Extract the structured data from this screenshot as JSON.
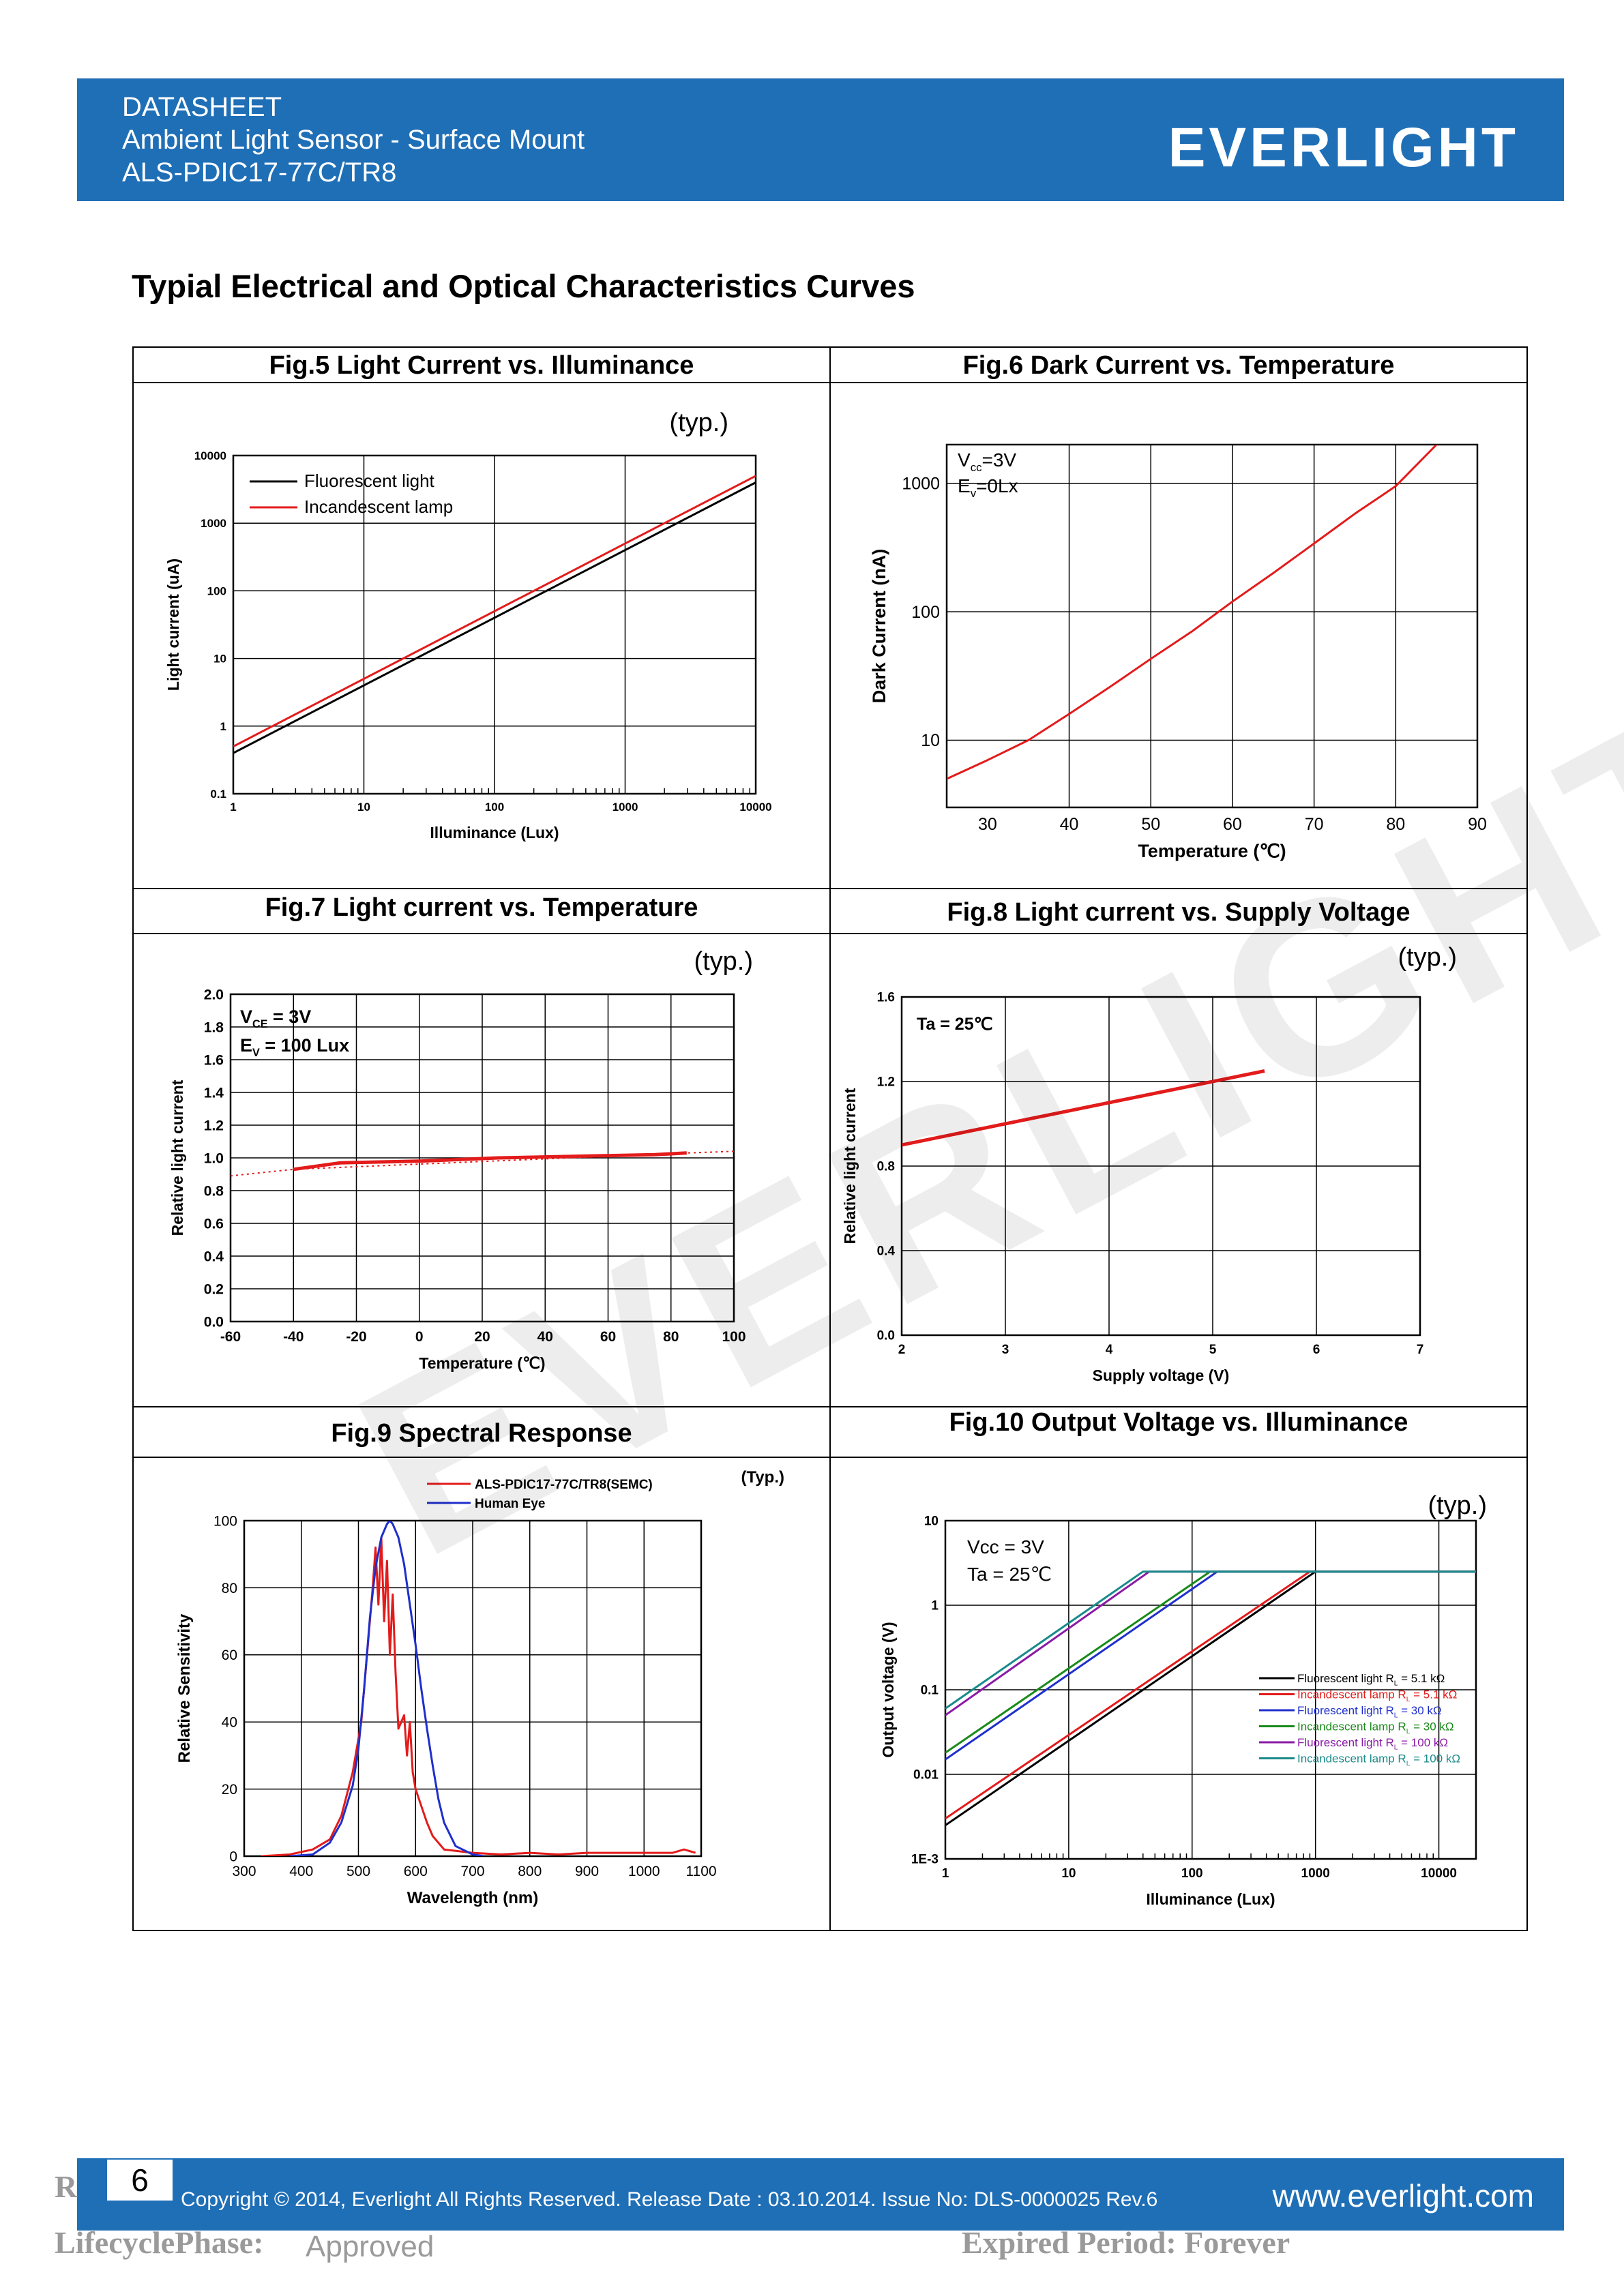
{
  "header": {
    "line1": "DATASHEET",
    "line2": "Ambient Light Sensor - Surface Mount",
    "line3": "ALS-PDIC17-77C/TR8",
    "logo": "EVERLIGHT"
  },
  "page_title": "Typial Electrical and Optical Characteristics Curves",
  "watermark": "EVERLIGHT",
  "colors": {
    "header_blue": "#1f6fb7",
    "curve_red": "#e31b1b",
    "black": "#000000"
  },
  "figs": {
    "fig5": {
      "title": "Fig.5    Light Current vs. Illuminance",
      "typ": "(typ.)"
    },
    "fig6": {
      "title": "Fig.6    Dark Current vs. Temperature"
    },
    "fig7": {
      "title": "Fig.7    Light current vs. Temperature",
      "typ": "(typ.)"
    },
    "fig8": {
      "title": "Fig.8    Light current vs. Supply Voltage",
      "typ": "(typ.)"
    },
    "fig9": {
      "title": "Fig.9    Spectral Response",
      "typ": "(Typ.)"
    },
    "fig10": {
      "title": "Fig.10    Output Voltage vs. Illuminance",
      "typ": "(typ.)"
    }
  },
  "chart_data": [
    {
      "id": "fig5",
      "type": "line",
      "xlabel": "Illuminance (Lux)",
      "ylabel": "Light current (uA)",
      "xscale": "log",
      "yscale": "log",
      "xlim": [
        1,
        10000
      ],
      "ylim": [
        0.1,
        10000
      ],
      "xticks": [
        "1",
        "10",
        "100",
        "1000",
        "10000"
      ],
      "yticks": [
        "0.1",
        "1",
        "10",
        "100",
        "1000",
        "10000"
      ],
      "series": [
        {
          "name": "Fluorescent light",
          "color": "#000000",
          "x": [
            1,
            10000
          ],
          "y": [
            0.4,
            4000
          ]
        },
        {
          "name": "Incandescent lamp",
          "color": "#e31b1b",
          "x": [
            1,
            10000
          ],
          "y": [
            0.5,
            5000
          ]
        }
      ]
    },
    {
      "id": "fig6",
      "type": "line",
      "xlabel": "Temperature (℃)",
      "ylabel": "Dark Current (nA)",
      "yscale": "log",
      "xlim": [
        25,
        90
      ],
      "ylim": [
        3,
        2000
      ],
      "xticks": [
        "30",
        "40",
        "50",
        "60",
        "70",
        "80",
        "90"
      ],
      "yticks": [
        "10",
        "100",
        "1000"
      ],
      "annotation": [
        "V",
        "cc",
        "=3V",
        "E",
        "v",
        "=0Lx"
      ],
      "series": [
        {
          "name": "",
          "color": "#e31b1b",
          "x": [
            25,
            30,
            35,
            40,
            45,
            50,
            55,
            60,
            65,
            70,
            75,
            80,
            85
          ],
          "y": [
            5,
            7,
            10,
            16,
            26,
            43,
            70,
            120,
            200,
            340,
            580,
            950,
            2000
          ]
        }
      ]
    },
    {
      "id": "fig7",
      "type": "line",
      "xlabel": "Temperature (",
      "xlabel_unit": "℃",
      "xlabel_end": ")",
      "ylabel": "Relative light current",
      "xlim": [
        -60,
        100
      ],
      "ylim": [
        0,
        2.0
      ],
      "xticks": [
        "-60",
        "-40",
        "-20",
        "0",
        "20",
        "40",
        "60",
        "80",
        "100"
      ],
      "yticks": [
        "0.0",
        "0.2",
        "0.4",
        "0.6",
        "0.8",
        "1.0",
        "1.2",
        "1.4",
        "1.6",
        "1.8",
        "2.0"
      ],
      "annotation": [
        "V",
        "CE",
        " = 3V",
        "E",
        "V",
        " = 100 Lux"
      ],
      "series": [
        {
          "name": "",
          "color": "#e31b1b",
          "x": [
            -40,
            -25,
            0,
            25,
            50,
            75,
            85
          ],
          "y": [
            0.93,
            0.97,
            0.98,
            1.0,
            1.01,
            1.02,
            1.03
          ]
        },
        {
          "name": "",
          "color": "#e31b1b",
          "style": "dotted",
          "x": [
            -60,
            -40,
            85,
            100
          ],
          "y": [
            0.89,
            0.93,
            1.03,
            1.04
          ]
        }
      ]
    },
    {
      "id": "fig8",
      "type": "line",
      "xlabel": "Supply voltage (V)",
      "ylabel": "Relative light current",
      "xlim": [
        2,
        7
      ],
      "ylim": [
        0,
        1.6
      ],
      "xticks": [
        "2",
        "3",
        "4",
        "5",
        "6",
        "7"
      ],
      "yticks": [
        "0.0",
        "0.4",
        "0.8",
        "1.2",
        "1.6"
      ],
      "annotation": "Ta = 25℃",
      "series": [
        {
          "name": "",
          "color": "#e31b1b",
          "x": [
            2,
            5.5
          ],
          "y": [
            0.9,
            1.25
          ]
        }
      ]
    },
    {
      "id": "fig9",
      "type": "line",
      "xlabel": "Wavelength (nm)",
      "ylabel": "Relative Sensitivity",
      "xlim": [
        300,
        1100
      ],
      "ylim": [
        0,
        100
      ],
      "xticks": [
        "300",
        "400",
        "500",
        "600",
        "700",
        "800",
        "900",
        "1000",
        "1100"
      ],
      "yticks": [
        "0",
        "20",
        "40",
        "60",
        "80",
        "100"
      ],
      "series": [
        {
          "name": "ALS-PDIC17-77C/TR8(SEMC)",
          "color": "#e31b1b",
          "x": [
            330,
            380,
            420,
            450,
            470,
            490,
            505,
            515,
            525,
            530,
            535,
            540,
            545,
            550,
            555,
            560,
            565,
            570,
            580,
            585,
            590,
            595,
            600,
            610,
            620,
            630,
            650,
            700,
            750,
            800,
            850,
            900,
            950,
            1000,
            1050,
            1070,
            1090
          ],
          "y": [
            0,
            0.5,
            2,
            5,
            12,
            25,
            40,
            60,
            80,
            92,
            75,
            95,
            70,
            88,
            60,
            78,
            55,
            38,
            42,
            30,
            40,
            25,
            20,
            15,
            10,
            6,
            2,
            1,
            0.5,
            1,
            0.5,
            1,
            1,
            1,
            1,
            2,
            1
          ]
        },
        {
          "name": "Human Eye",
          "color": "#1f2fcc",
          "x": [
            380,
            420,
            450,
            470,
            490,
            500,
            510,
            520,
            530,
            540,
            550,
            555,
            560,
            570,
            580,
            590,
            600,
            610,
            620,
            630,
            640,
            650,
            670,
            700,
            720
          ],
          "y": [
            0,
            0.5,
            4,
            10,
            21,
            32,
            50,
            71,
            86,
            95,
            99,
            100,
            99,
            95,
            87,
            75,
            63,
            50,
            38,
            27,
            17,
            10,
            3,
            0.5,
            0
          ]
        }
      ]
    },
    {
      "id": "fig10",
      "type": "line",
      "xlabel": "Illuminance (Lux)",
      "ylabel": "Output voltage (V)",
      "xscale": "log",
      "yscale": "log",
      "xlim": [
        1,
        20000
      ],
      "ylim": [
        0.001,
        10
      ],
      "xticks": [
        "1",
        "10",
        "100",
        "1000",
        "10000"
      ],
      "yticks": [
        "1E-3",
        "0.01",
        "0.1",
        "1",
        "10"
      ],
      "annotation": [
        "Vcc = 3V",
        "Ta = 25℃"
      ],
      "series": [
        {
          "name": "Fluorescent light R",
          "sub": "L",
          "tail": " = 5.1 kΩ",
          "color": "#000000",
          "x": [
            1,
            1000,
            20000
          ],
          "y": [
            0.0025,
            2.5,
            2.5
          ]
        },
        {
          "name": "Incandescent lamp  R",
          "sub": "L",
          "tail": " = 5.1 kΩ",
          "color": "#e31b1b",
          "x": [
            1,
            900,
            20000
          ],
          "y": [
            0.003,
            2.5,
            2.5
          ]
        },
        {
          "name": "Fluorescent light R",
          "sub": "L",
          "tail": " = 30 kΩ",
          "color": "#1f2fcc",
          "x": [
            1,
            160,
            20000
          ],
          "y": [
            0.015,
            2.5,
            2.5
          ]
        },
        {
          "name": "Incandescent lamp  R",
          "sub": "L",
          "tail": " = 30 kΩ",
          "color": "#1a8a1a",
          "x": [
            1,
            140,
            20000
          ],
          "y": [
            0.018,
            2.5,
            2.5
          ]
        },
        {
          "name": "Fluorescent light R",
          "sub": "L",
          "tail": " = 100 kΩ",
          "color": "#8a1aa6",
          "x": [
            1,
            45,
            20000
          ],
          "y": [
            0.05,
            2.5,
            2.5
          ]
        },
        {
          "name": "Incandescent lamp  R",
          "sub": "L",
          "tail": " = 100 kΩ",
          "color": "#1a8a8a",
          "x": [
            1,
            40,
            20000
          ],
          "y": [
            0.06,
            2.5,
            2.5
          ]
        }
      ]
    }
  ],
  "footer": {
    "page": "6",
    "copyright": "Copyright © 2014, Everlight All Rights Reserved. Release Date : 03.10.2014. Issue No: DLS-0000025    Rev.6",
    "website": "www.everlight.com"
  },
  "stamp": {
    "left_char": "R",
    "lifecycle": "LifecyclePhase:",
    "approved": "Approved",
    "expired": "Expired Period: Forever"
  }
}
